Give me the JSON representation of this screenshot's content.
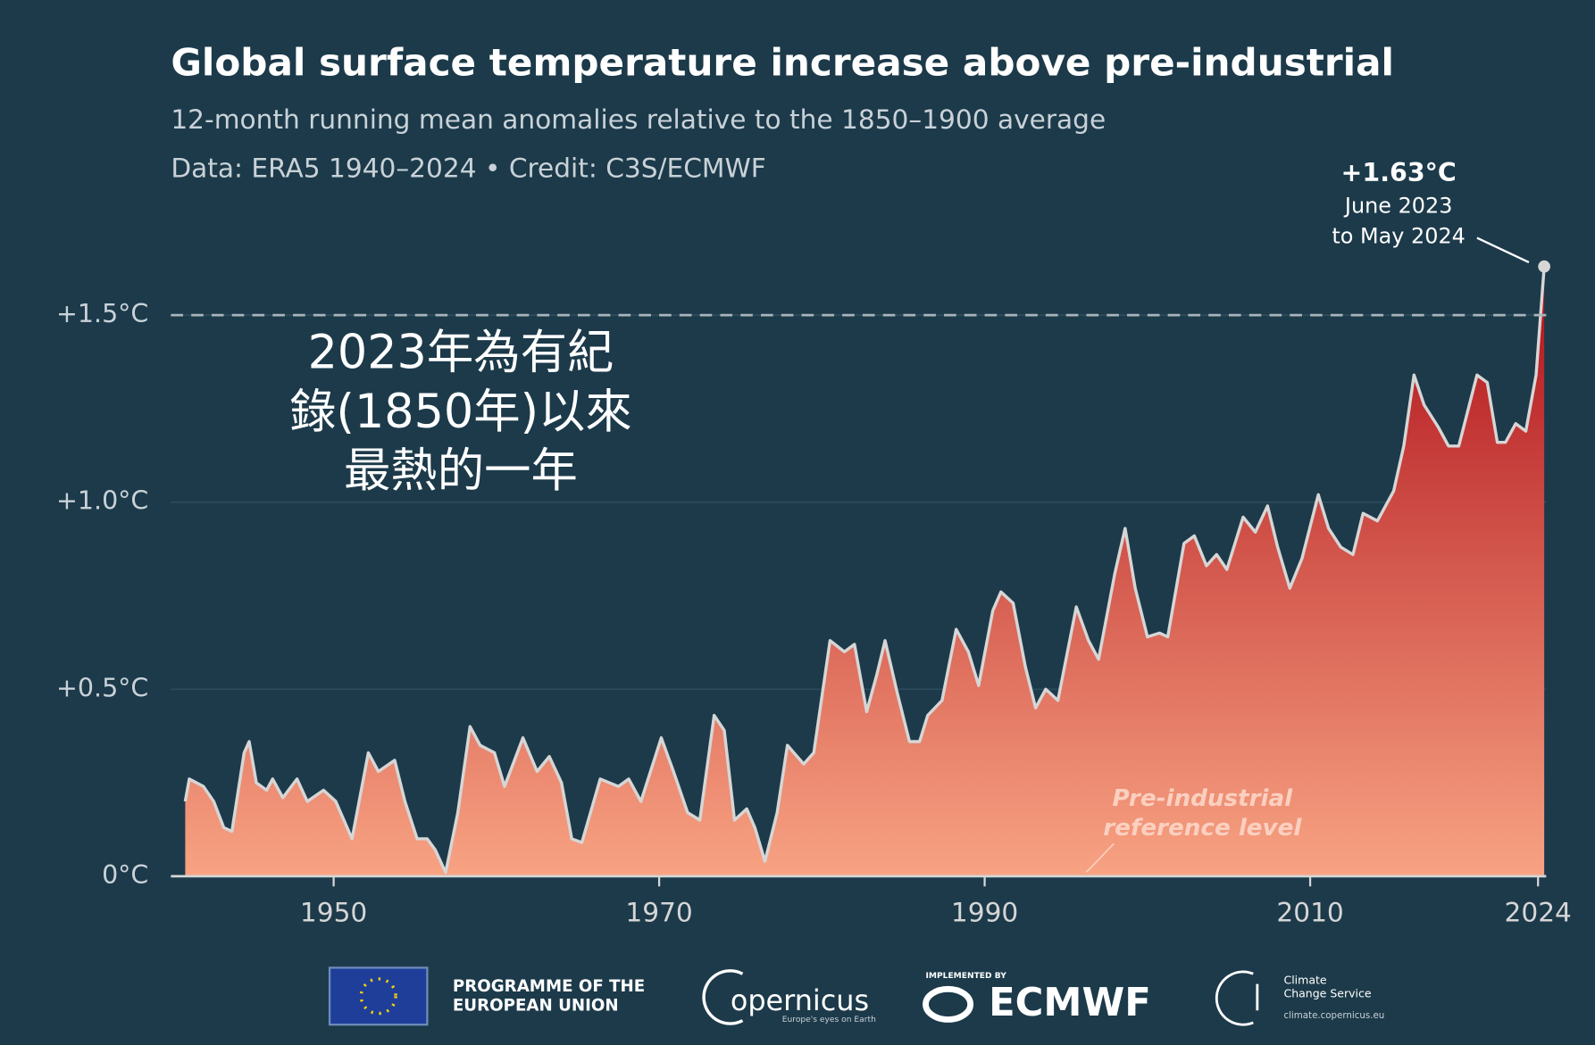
{
  "chart_data": {
    "type": "area",
    "title": "Global surface temperature increase above pre-industrial",
    "subtitle": "12-month running mean anomalies relative to the 1850–1900 average",
    "credit": "Data: ERA5 1940–2024 • Credit: C3S/ECMWF",
    "x": [
      1940.88,
      1941.13,
      1942,
      1942.63,
      1943.25,
      1943.75,
      1944.5,
      1944.81,
      1945.25,
      1945.88,
      1946.25,
      1946.88,
      1947.75,
      1948.38,
      1949.38,
      1950.13,
      1951.13,
      1952.13,
      1952.75,
      1953.75,
      1954.38,
      1955.13,
      1955.75,
      1956.25,
      1956.88,
      1957.63,
      1958.38,
      1959,
      1959.88,
      1960.5,
      1961.63,
      1962.5,
      1963.25,
      1964,
      1964.63,
      1965.25,
      1966.38,
      1967.5,
      1968.13,
      1968.88,
      1970.13,
      1970.88,
      1971.75,
      1972.5,
      1973.38,
      1974,
      1974.63,
      1975.38,
      1975.88,
      1976.5,
      1977.25,
      1977.88,
      1978.88,
      1979.5,
      1980.5,
      1981.38,
      1982,
      1982.75,
      1983.38,
      1983.88,
      1984.63,
      1985.38,
      1986,
      1986.5,
      1987.38,
      1988.25,
      1989,
      1989.63,
      1990.5,
      1991,
      1991.75,
      1992.5,
      1993.13,
      1993.75,
      1994.5,
      1995.63,
      1996.38,
      1997,
      1998,
      1998.63,
      1999.25,
      2000,
      2000.75,
      2001.25,
      2002.25,
      2002.88,
      2003.63,
      2004.25,
      2004.88,
      2005.88,
      2006.63,
      2007.38,
      2008,
      2008.75,
      2009.5,
      2010.5,
      2011.13,
      2011.88,
      2012.63,
      2013.25,
      2014.13,
      2015.13,
      2015.75,
      2016.38,
      2017,
      2017.88,
      2018.5,
      2019.13,
      2020.25,
      2020.88,
      2021.5,
      2022,
      2022.63,
      2023.25,
      2023.88,
      2024.38
    ],
    "values": [
      0.2,
      0.26,
      0.24,
      0.2,
      0.13,
      0.12,
      0.33,
      0.36,
      0.25,
      0.23,
      0.26,
      0.21,
      0.26,
      0.2,
      0.23,
      0.2,
      0.1,
      0.33,
      0.28,
      0.31,
      0.2,
      0.1,
      0.1,
      0.07,
      0.01,
      0.17,
      0.4,
      0.35,
      0.33,
      0.24,
      0.37,
      0.28,
      0.32,
      0.25,
      0.1,
      0.09,
      0.26,
      0.24,
      0.26,
      0.2,
      0.37,
      0.28,
      0.17,
      0.15,
      0.43,
      0.39,
      0.15,
      0.18,
      0.13,
      0.04,
      0.17,
      0.35,
      0.3,
      0.33,
      0.63,
      0.6,
      0.62,
      0.44,
      0.54,
      0.63,
      0.49,
      0.36,
      0.36,
      0.43,
      0.47,
      0.66,
      0.6,
      0.51,
      0.71,
      0.76,
      0.73,
      0.56,
      0.45,
      0.5,
      0.47,
      0.72,
      0.63,
      0.58,
      0.81,
      0.93,
      0.77,
      0.64,
      0.65,
      0.64,
      0.89,
      0.91,
      0.83,
      0.86,
      0.82,
      0.96,
      0.92,
      0.99,
      0.88,
      0.77,
      0.85,
      1.02,
      0.93,
      0.88,
      0.86,
      0.97,
      0.95,
      1.03,
      1.15,
      1.34,
      1.26,
      1.2,
      1.15,
      1.15,
      1.34,
      1.32,
      1.16,
      1.16,
      1.21,
      1.19,
      1.34,
      1.63
    ],
    "xlim": [
      1940,
      2024.5
    ],
    "xticks": [
      1950,
      1970,
      1990,
      2010,
      2024
    ],
    "ylim": [
      0,
      1.75
    ],
    "yticks": [
      {
        "value": 0,
        "label": "0°C"
      },
      {
        "value": 0.5,
        "label": "+0.5°C"
      },
      {
        "value": 1,
        "label": "+1.0°C"
      },
      {
        "value": 1.5,
        "label": "+1.5°C"
      }
    ],
    "threshold": 1.5,
    "grid": true,
    "color_top": "#b0101a",
    "color_bottom": "#f8a383",
    "line_color": "#d6d6d6",
    "annotations": {
      "peak": [
        "+1.63°C",
        "June 2023",
        "to May 2024"
      ],
      "reference": [
        "Pre-industrial",
        "reference level"
      ],
      "note": [
        "2023年為有紀",
        "錄(1850年)以來",
        "最熱的一年"
      ]
    }
  },
  "footer": {
    "eu": [
      "PROGRAMME OF THE",
      "EUROPEAN UNION"
    ],
    "copernicus": "opernicus",
    "copernicus_tagline": "Europe's eyes on Earth",
    "ecmwf_pre": "IMPLEMENTED BY",
    "ecmwf": "ECMWF",
    "c3s": [
      "Climate",
      "Change Service"
    ],
    "c3s_url": "climate.copernicus.eu"
  }
}
